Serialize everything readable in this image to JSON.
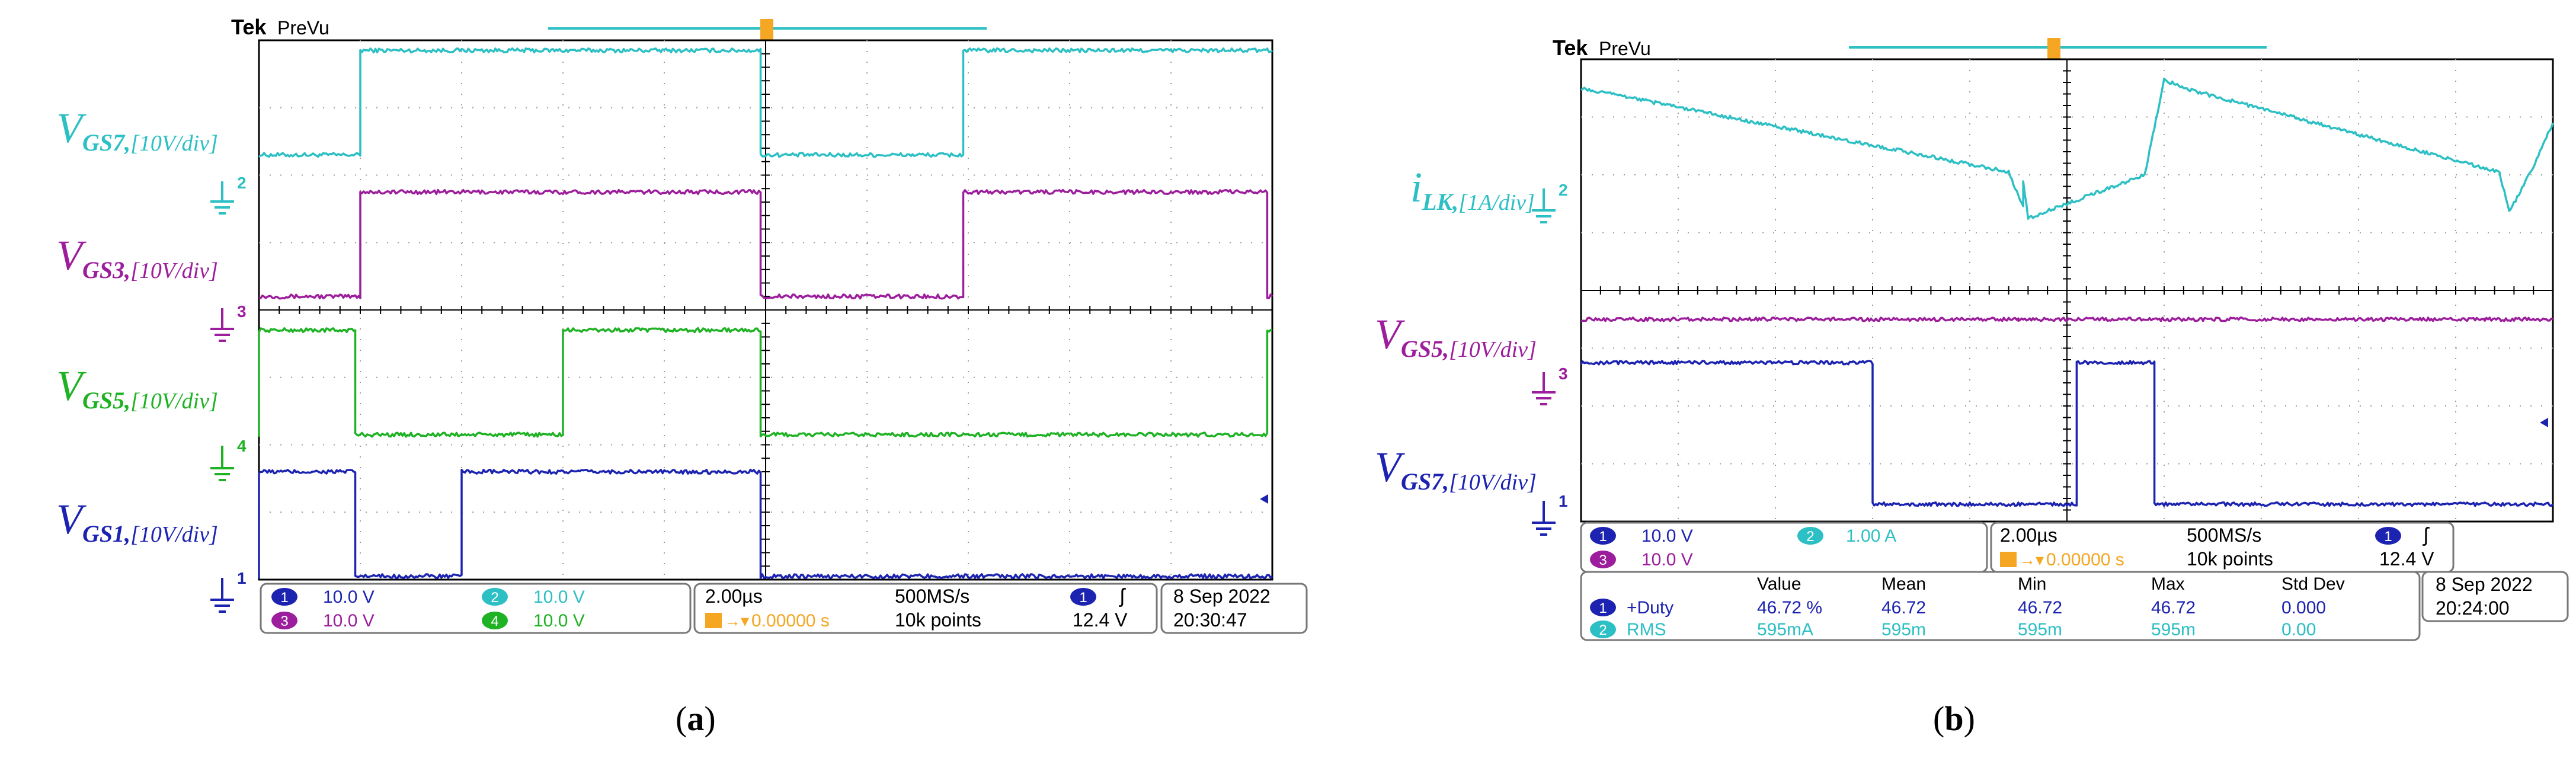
{
  "colors": {
    "ch1": "#1c23b0",
    "ch2": "#2cbfc4",
    "ch3": "#9c1e9c",
    "ch4": "#1fb224",
    "trigger": "#f5a623",
    "grid": "#9a9a9a"
  },
  "chart_data": [
    {
      "type": "line",
      "caption": "(a)",
      "brand": "Tek",
      "mode": "PreVu",
      "x_divisions": 10,
      "y_divisions": 8,
      "grid": true,
      "time_per_div": "2.00µs",
      "sample_rate": "500MS/s",
      "record_length": "10k points",
      "trigger_position": "0.00000 s",
      "trigger_level": "12.4 V",
      "trigger_channel": "1",
      "date": "8 Sep 2022",
      "time": "20:30:47",
      "channels": [
        {
          "num": "1",
          "scale": "10.0 V"
        },
        {
          "num": "2",
          "scale": "10.0 V"
        },
        {
          "num": "3",
          "scale": "10.0 V"
        },
        {
          "num": "4",
          "scale": "10.0 V"
        }
      ],
      "labels": [
        {
          "main": "V",
          "sub": "GS7,",
          "unit": "[10V/div]",
          "channel": "2"
        },
        {
          "main": "V",
          "sub": "GS3,",
          "unit": "[10V/div]",
          "channel": "3"
        },
        {
          "main": "V",
          "sub": "GS5,",
          "unit": "[10V/div]",
          "channel": "4"
        },
        {
          "main": "V",
          "sub": "GS1,",
          "unit": "[10V/div]",
          "channel": "1"
        }
      ],
      "series": [
        {
          "channel": "2",
          "unit": "div",
          "offset_div": 6.3,
          "x_div": [
            0,
            1.0,
            1.0,
            4.95,
            4.95,
            6.95,
            6.95,
            10
          ],
          "y_div": [
            0,
            0,
            1.55,
            1.55,
            0,
            0,
            1.55,
            1.55
          ]
        },
        {
          "channel": "3",
          "unit": "div",
          "offset_div": 4.2,
          "x_div": [
            0,
            1.0,
            1.0,
            4.95,
            4.95,
            6.95,
            6.95,
            9.95,
            9.95,
            10
          ],
          "y_div": [
            0,
            0,
            1.55,
            1.55,
            0,
            0,
            1.55,
            1.55,
            0,
            0
          ]
        },
        {
          "channel": "4",
          "unit": "div",
          "offset_div": 2.15,
          "x_div": [
            0,
            0.0,
            0.0,
            0.95,
            0.95,
            3.0,
            3.0,
            4.95,
            4.95,
            9.95,
            9.95,
            10
          ],
          "y_div": [
            0,
            0,
            1.55,
            1.55,
            0,
            0,
            1.55,
            1.55,
            0,
            0,
            1.55,
            1.55
          ]
        },
        {
          "channel": "1",
          "unit": "div",
          "offset_div": 0.05,
          "x_div": [
            0,
            0.0,
            0.0,
            0.95,
            0.95,
            2.0,
            2.0,
            4.95,
            4.95,
            10
          ],
          "y_div": [
            0,
            0,
            1.55,
            1.55,
            0,
            0,
            1.55,
            1.55,
            0,
            0
          ]
        }
      ]
    },
    {
      "type": "line",
      "caption": "(b)",
      "brand": "Tek",
      "mode": "PreVu",
      "x_divisions": 10,
      "y_divisions": 8,
      "grid": true,
      "time_per_div": "2.00µs",
      "sample_rate": "500MS/s",
      "record_length": "10k points",
      "trigger_position": "0.00000 s",
      "trigger_level": "12.4 V",
      "trigger_channel": "1",
      "date": "8 Sep 2022",
      "time": "20:24:00",
      "channels": [
        {
          "num": "1",
          "scale": "10.0 V"
        },
        {
          "num": "2",
          "scale": "1.00 A"
        },
        {
          "num": "3",
          "scale": "10.0 V"
        }
      ],
      "labels": [
        {
          "main": "i",
          "sub": "LK,",
          "unit": "[1A/div]",
          "channel": "2"
        },
        {
          "main": "V",
          "sub": "GS5,",
          "unit": "[10V/div]",
          "channel": "3"
        },
        {
          "main": "V",
          "sub": "GS7,",
          "unit": "[10V/div]",
          "channel": "1"
        }
      ],
      "measurements": {
        "headers": [
          "Value",
          "Mean",
          "Min",
          "Max",
          "Std Dev"
        ],
        "rows": [
          {
            "channel": "1",
            "name": "+Duty",
            "value": "46.72 %",
            "mean": "46.72",
            "min": "46.72",
            "max": "46.72",
            "std": "0.000"
          },
          {
            "channel": "2",
            "name": "RMS",
            "value": "595mA",
            "mean": "595m",
            "min": "595m",
            "max": "595m",
            "std": "0.00"
          }
        ]
      },
      "series": [
        {
          "channel": "2",
          "unit": "div",
          "offset_div": 5.9,
          "x_div": [
            0,
            4.4,
            4.55,
            4.55,
            4.6,
            5.8,
            6.0,
            6.2,
            9.45,
            9.55,
            9.8,
            10
          ],
          "y_div": [
            1.6,
            0.15,
            -0.45,
            0.0,
            -0.65,
            0.1,
            1.75,
            1.6,
            0.15,
            -0.55,
            0.25,
            1.0
          ]
        },
        {
          "channel": "3",
          "unit": "div",
          "offset_div": 3.5,
          "x_div": [
            0,
            4.5,
            4.5,
            8.1,
            8.1,
            9.3,
            9.3,
            9.75,
            9.75,
            10
          ],
          "y_div": [
            0,
            0,
            0,
            0,
            0,
            0,
            0,
            0,
            0,
            0
          ]
        },
        {
          "channel": "1",
          "unit": "div",
          "offset_div": 0.3,
          "x_div": [
            0,
            3.0,
            3.0,
            5.1,
            5.1,
            5.9,
            5.9,
            10
          ],
          "y_div": [
            2.45,
            2.45,
            0,
            0,
            2.45,
            2.45,
            0,
            0
          ]
        }
      ]
    }
  ]
}
